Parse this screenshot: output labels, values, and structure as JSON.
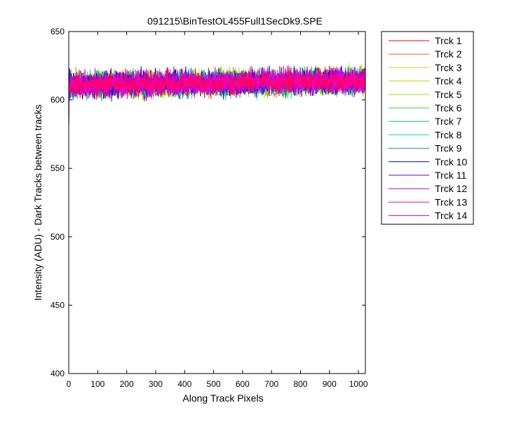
{
  "chart_data": {
    "type": "line",
    "title": "091215\\BinTestOL455Full1SecDk9.SPE",
    "xlabel": "Along Track Pixels",
    "ylabel": "Intensity (ADU) - Dark Tracks between tracks",
    "xlim": [
      0,
      1024
    ],
    "ylim": [
      400,
      650
    ],
    "xticks": [
      0,
      100,
      200,
      300,
      400,
      500,
      600,
      700,
      800,
      900,
      1000
    ],
    "yticks": [
      400,
      450,
      500,
      550,
      600,
      650
    ],
    "grid": false,
    "legend_position": "outside-top-right",
    "x_points": 1024,
    "first_point": 579,
    "baseline_start": 611,
    "baseline_end": 614,
    "noise_amplitude": 6,
    "series": [
      {
        "name": "Trck 1",
        "color": "#ff0000"
      },
      {
        "name": "Trck 2",
        "color": "#ff6600"
      },
      {
        "name": "Trck 3",
        "color": "#ffcc00"
      },
      {
        "name": "Trck 4",
        "color": "#cccc00"
      },
      {
        "name": "Trck 5",
        "color": "#99ee00"
      },
      {
        "name": "Trck 6",
        "color": "#33dd33"
      },
      {
        "name": "Trck 7",
        "color": "#00cc66"
      },
      {
        "name": "Trck 8",
        "color": "#00ddcc"
      },
      {
        "name": "Trck 9",
        "color": "#0099cc"
      },
      {
        "name": "Trck 10",
        "color": "#0000ee"
      },
      {
        "name": "Trck 11",
        "color": "#6600cc"
      },
      {
        "name": "Trck 12",
        "color": "#aa00ee"
      },
      {
        "name": "Trck 13",
        "color": "#ee00ee"
      },
      {
        "name": "Trck 14",
        "color": "#ff0066"
      }
    ]
  }
}
